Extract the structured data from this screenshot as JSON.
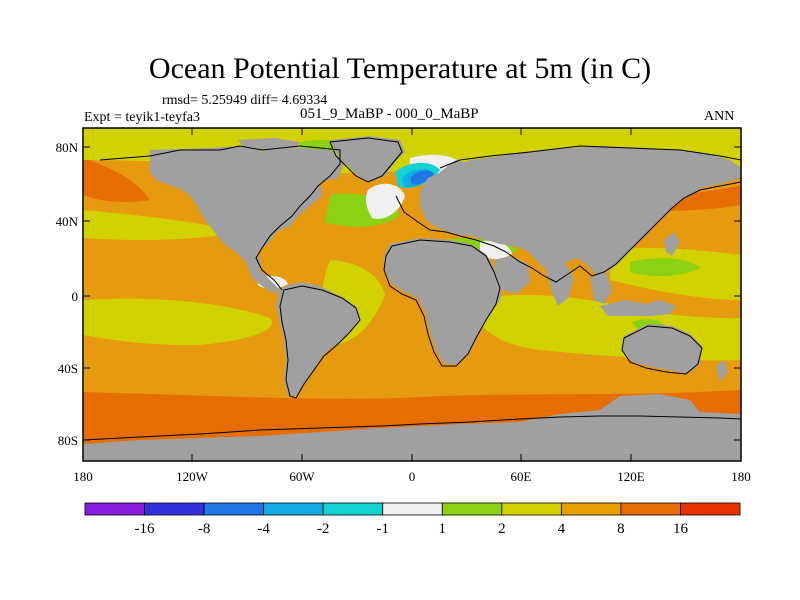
{
  "title": "Ocean Potential Temperature at 5m (in C)",
  "stats_line": "rmsd= 5.25949 diff= 4.69334",
  "experiment_label": "Expt = teyik1-teyfa3",
  "period_label": "051_9_MaBP - 000_0_MaBP",
  "season_label": "ANN",
  "lat_ticks": [
    "80N",
    "40N",
    "0",
    "40S",
    "80S"
  ],
  "lon_ticks": [
    "180",
    "120W",
    "60W",
    "0",
    "60E",
    "120E",
    "180"
  ],
  "legend": {
    "labels": [
      "-16",
      "-8",
      "-4",
      "-2",
      "-1",
      "1",
      "2",
      "4",
      "8",
      "16"
    ],
    "colors": [
      "#8a1ce0",
      "#3232dc",
      "#1e78e6",
      "#14aae6",
      "#14d2d2",
      "#f0f0f0",
      "#8cd214",
      "#d2d200",
      "#e6a000",
      "#e66e00",
      "#e63200"
    ]
  },
  "palette": {
    "land": "#a0a0a0",
    "background_field": "#e69a10",
    "frame": "#000000"
  }
}
